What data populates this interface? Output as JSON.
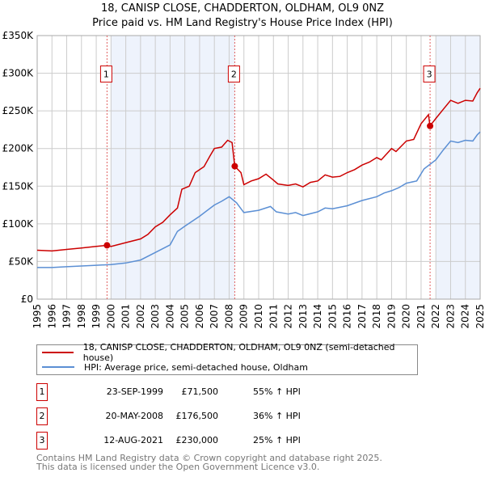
{
  "chart_data": {
    "type": "line",
    "title": "18, CANISP CLOSE, CHADDERTON, OLDHAM, OL9 0NZ",
    "subtitle": "Price paid vs. HM Land Registry's House Price Index (HPI)",
    "xlim": [
      1995,
      2025
    ],
    "ylim": [
      0,
      350000
    ],
    "y_ticks": [
      "£0",
      "£50K",
      "£100K",
      "£150K",
      "£200K",
      "£250K",
      "£300K",
      "£350K"
    ],
    "x_ticks": [
      "1995",
      "1996",
      "1997",
      "1998",
      "1999",
      "2000",
      "2001",
      "2002",
      "2003",
      "2004",
      "2005",
      "2006",
      "2007",
      "2008",
      "2009",
      "2010",
      "2011",
      "2012",
      "2013",
      "2014",
      "2015",
      "2016",
      "2017",
      "2018",
      "2019",
      "2020",
      "2021",
      "2022",
      "2023",
      "2024",
      "2025"
    ],
    "shaded_ranges": [
      [
        2000,
        2008.38
      ],
      [
        2022,
        2025
      ]
    ],
    "series": [
      {
        "name": "18, CANISP CLOSE, CHADDERTON, OLDHAM, OL9 0NZ (semi-detached house)",
        "color": "#cc0000",
        "x": [
          1995,
          1996,
          1997,
          1998,
          1999,
          1999.73,
          2000,
          2001,
          2002,
          2002.5,
          2003,
          2003.5,
          2004,
          2004.5,
          2004.8,
          2005.3,
          2005.7,
          2006.3,
          2006.7,
          2007,
          2007.5,
          2007.9,
          2008.2,
          2008.38,
          2008.8,
          2009,
          2009.5,
          2010,
          2010.5,
          2011,
          2011.3,
          2012,
          2012.5,
          2013,
          2013.5,
          2014,
          2014.5,
          2015,
          2015.5,
          2016,
          2016.5,
          2017,
          2017.5,
          2018,
          2018.3,
          2019,
          2019.3,
          2020,
          2020.5,
          2021,
          2021.5,
          2021.6,
          2022,
          2022.5,
          2023,
          2023.5,
          2024,
          2024.5,
          2024.8,
          2025
        ],
        "y": [
          65,
          64,
          66,
          68,
          70,
          71.5,
          70,
          75,
          80,
          86,
          96,
          102,
          112,
          121,
          146,
          150,
          168,
          176,
          190,
          200,
          202,
          211,
          208,
          176.5,
          168,
          152,
          157,
          160,
          166,
          158,
          153,
          151,
          153,
          149,
          155,
          157,
          165,
          162,
          163,
          168,
          172,
          178,
          182,
          188,
          185,
          200,
          196,
          210,
          212,
          233,
          245,
          230,
          240,
          252,
          264,
          260,
          264,
          263,
          274,
          280
        ]
      },
      {
        "name": "HPI: Average price, semi-detached house, Oldham",
        "color": "#5b8fd4",
        "x": [
          1995,
          1996,
          1997,
          1998,
          1999,
          2000,
          2001,
          2002,
          2003,
          2004,
          2004.5,
          2005,
          2006,
          2007,
          2007.5,
          2008,
          2008.5,
          2009,
          2010,
          2010.8,
          2011.2,
          2012,
          2012.5,
          2013,
          2014,
          2014.5,
          2015,
          2016,
          2017,
          2018,
          2018.5,
          2019,
          2019.5,
          2020,
          2020.7,
          2021.2,
          2022,
          2022.5,
          2023,
          2023.5,
          2024,
          2024.5,
          2024.8,
          2025
        ],
        "y": [
          42,
          42,
          43,
          44,
          45,
          46,
          48,
          52,
          62,
          72,
          90,
          97,
          110,
          125,
          130,
          136,
          128,
          115,
          118,
          123,
          116,
          113,
          115,
          111,
          116,
          121,
          120,
          124,
          131,
          136,
          141,
          144,
          148,
          154,
          157,
          173,
          185,
          198,
          210,
          208,
          211,
          210,
          218,
          222
        ]
      }
    ],
    "sales": [
      {
        "label": "1",
        "x": 1999.73,
        "price": 71500,
        "date": "23-SEP-1999",
        "price_text": "£71,500",
        "hpi": "55% ↑ HPI"
      },
      {
        "label": "2",
        "x": 2008.38,
        "price": 176500,
        "date": "20-MAY-2008",
        "price_text": "£176,500",
        "hpi": "36% ↑ HPI"
      },
      {
        "label": "3",
        "x": 2021.61,
        "price": 230000,
        "date": "12-AUG-2021",
        "price_text": "£230,000",
        "hpi": "25% ↑ HPI"
      }
    ],
    "legend_placement": "below"
  },
  "footer": {
    "line1": "Contains HM Land Registry data © Crown copyright and database right 2025.",
    "line2": "This data is licensed under the Open Government Licence v3.0."
  }
}
